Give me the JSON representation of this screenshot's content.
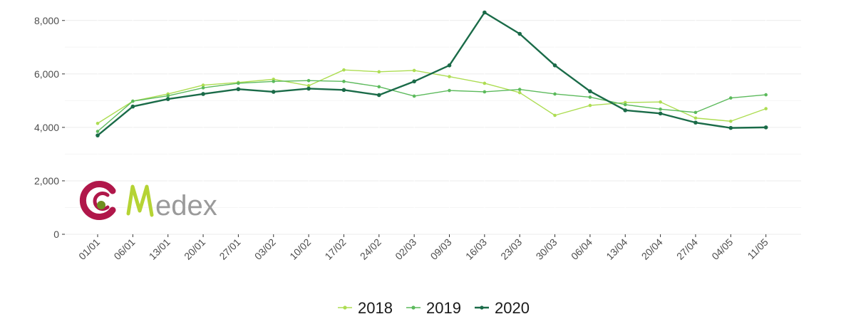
{
  "chart_data": {
    "type": "line",
    "title": "",
    "xlabel": "",
    "ylabel": "",
    "categories": [
      "01/01",
      "06/01",
      "13/01",
      "20/01",
      "27/01",
      "03/02",
      "10/02",
      "17/02",
      "24/02",
      "02/03",
      "09/03",
      "16/03",
      "23/03",
      "30/03",
      "06/04",
      "13/04",
      "20/04",
      "27/04",
      "04/05",
      "11/05"
    ],
    "ylim": [
      0,
      8500
    ],
    "yticks": [
      0,
      2000,
      4000,
      6000,
      8000
    ],
    "ytick_labels": [
      "0",
      "2,000",
      "4,000",
      "6,000",
      "8,000"
    ],
    "grid": true,
    "legend_position": "bottom",
    "series": [
      {
        "name": "2018",
        "color": "#addd52",
        "values": [
          4150,
          4980,
          5250,
          5580,
          5680,
          5800,
          5560,
          6150,
          6080,
          6130,
          5900,
          5650,
          5300,
          4450,
          4820,
          4930,
          4950,
          4350,
          4230,
          4700
        ]
      },
      {
        "name": "2019",
        "color": "#5cba5c",
        "values": [
          3850,
          4980,
          5180,
          5480,
          5650,
          5720,
          5750,
          5720,
          5520,
          5170,
          5380,
          5330,
          5420,
          5250,
          5130,
          4850,
          4680,
          4560,
          5100,
          5220
        ]
      },
      {
        "name": "2020",
        "color": "#1a6b48",
        "values": [
          3700,
          4780,
          5060,
          5250,
          5430,
          5330,
          5450,
          5400,
          5210,
          5720,
          6320,
          8300,
          7500,
          6320,
          5350,
          4640,
          4520,
          4180,
          3980,
          4000
        ]
      }
    ]
  },
  "logo": {
    "text": "edex",
    "letter": "M",
    "accent_color": "#b0174a",
    "dot_color": "#6f8e1e",
    "m_color": "#b5d334",
    "text_color": "#9a9a9a",
    "wordmark": "Medex"
  }
}
